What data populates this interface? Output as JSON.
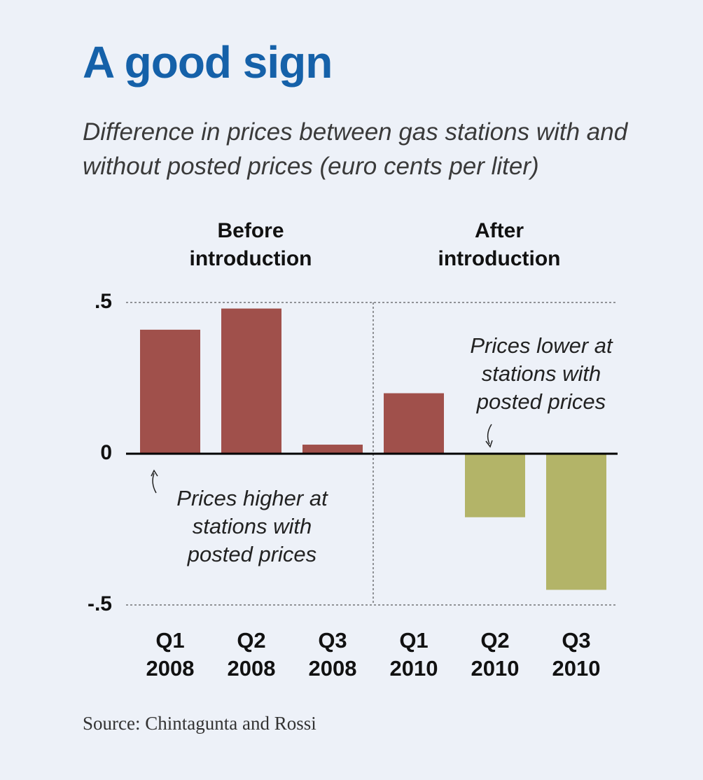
{
  "chart_data": {
    "type": "bar",
    "title": "A good sign",
    "subtitle": "Difference in prices between gas stations with and without posted prices (euro cents per liter)",
    "group_labels": [
      "Before introduction",
      "After introduction"
    ],
    "categories": [
      "Q1 2008",
      "Q2 2008",
      "Q3 2008",
      "Q1 2010",
      "Q2 2010",
      "Q3 2010"
    ],
    "values": [
      0.41,
      0.48,
      0.03,
      0.2,
      -0.21,
      -0.45
    ],
    "colors": [
      "#a0504b",
      "#a0504b",
      "#a0504b",
      "#a0504b",
      "#b3b468",
      "#b3b468"
    ],
    "ylim": [
      -0.5,
      0.5
    ],
    "yticks": [
      {
        "value": -0.5,
        "label": "-.5"
      },
      0,
      {
        "value": 0.5,
        "label": ".5"
      }
    ],
    "grid": true,
    "annotations": [
      "Prices higher at stations with posted prices",
      "Prices lower at stations with posted prices"
    ],
    "source": "Source: Chintagunta and Rossi"
  }
}
